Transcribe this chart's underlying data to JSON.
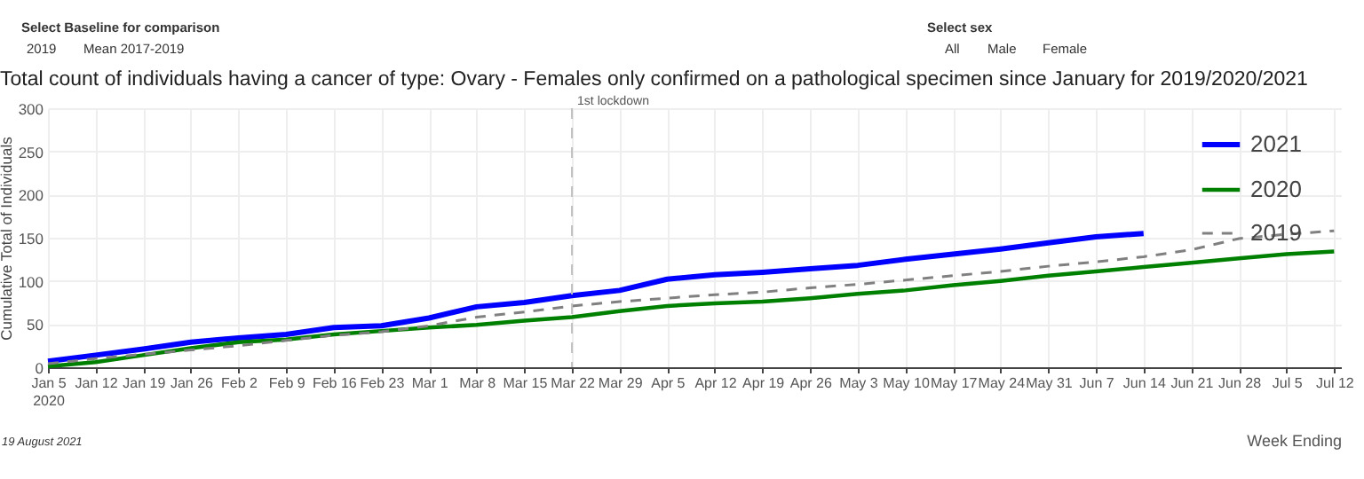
{
  "chart_data": {
    "type": "line",
    "title": "Total count of individuals having a cancer of type: Ovary - Females only confirmed on a pathological specimen since January for 2019/2020/2021",
    "xlabel": "Week Ending",
    "ylabel": "Cumulative Total of Individuals",
    "annotations": [
      "Select Baseline for comparison",
      "2019",
      "Mean 2017-2019",
      "Select sex",
      "All",
      "Male",
      "Female",
      "19 August 2021"
    ],
    "x": [
      "2020-01-05",
      "2020-01-12",
      "2020-01-19",
      "2020-01-26",
      "2020-02-02",
      "2020-02-09",
      "2020-02-16",
      "2020-02-23",
      "2020-03-01",
      "2020-03-08",
      "2020-03-15",
      "2020-03-22",
      "2020-03-29",
      "2020-04-05",
      "2020-04-12",
      "2020-04-19",
      "2020-04-26",
      "2020-05-03",
      "2020-05-10",
      "2020-05-17",
      "2020-05-24",
      "2020-05-31",
      "2020-06-07",
      "2020-06-14",
      "2020-06-21",
      "2020-06-28",
      "2020-07-05",
      "2020-07-12"
    ],
    "series": [
      {
        "name": "2021",
        "color": "#0000ff",
        "line_style": "solid",
        "values": [
          7,
          14,
          21,
          29,
          34,
          38,
          46,
          48,
          57,
          70,
          75,
          83,
          89,
          102,
          107,
          110,
          114,
          118,
          125,
          131,
          137,
          144,
          151,
          155,
          null,
          null,
          null,
          null
        ]
      },
      {
        "name": "2020",
        "color": "#008000",
        "line_style": "solid",
        "values": [
          1,
          6,
          14,
          22,
          29,
          32,
          38,
          42,
          46,
          49,
          54,
          58,
          65,
          71,
          74,
          76,
          80,
          85,
          89,
          95,
          100,
          106,
          111,
          116,
          121,
          126,
          131,
          134
        ]
      },
      {
        "name": "2019",
        "color": "#808080",
        "line_style": "dashed",
        "values": [
          4,
          10,
          15,
          20,
          25,
          31,
          37,
          41,
          48,
          58,
          64,
          71,
          76,
          80,
          84,
          87,
          92,
          96,
          101,
          106,
          111,
          117,
          122,
          128,
          136,
          149,
          154,
          158
        ]
      }
    ],
    "xlim": [
      "2020-01-05",
      "2020-07-13"
    ],
    "xticks": [
      {
        "value": "2020-01-05",
        "label": "Jan 5\n2020"
      },
      {
        "value": "2020-01-12",
        "label": "Jan 12"
      },
      {
        "value": "2020-01-19",
        "label": "Jan 19"
      },
      {
        "value": "2020-01-26",
        "label": "Jan 26"
      },
      {
        "value": "2020-02-02",
        "label": "Feb 2"
      },
      {
        "value": "2020-02-09",
        "label": "Feb 9"
      },
      {
        "value": "2020-02-16",
        "label": "Feb 16"
      },
      {
        "value": "2020-02-23",
        "label": "Feb 23"
      },
      {
        "value": "2020-03-01",
        "label": "Mar 1"
      },
      {
        "value": "2020-03-08",
        "label": "Mar 8"
      },
      {
        "value": "2020-03-15",
        "label": "Mar 15"
      },
      {
        "value": "2020-03-22",
        "label": "Mar 22"
      },
      {
        "value": "2020-03-29",
        "label": "Mar 29"
      },
      {
        "value": "2020-04-05",
        "label": "Apr 5"
      },
      {
        "value": "2020-04-12",
        "label": "Apr 12"
      },
      {
        "value": "2020-04-19",
        "label": "Apr 19"
      },
      {
        "value": "2020-04-26",
        "label": "Apr 26"
      },
      {
        "value": "2020-05-03",
        "label": "May 3"
      },
      {
        "value": "2020-05-10",
        "label": "May 10"
      },
      {
        "value": "2020-05-17",
        "label": "May 17"
      },
      {
        "value": "2020-05-24",
        "label": "May 24"
      },
      {
        "value": "2020-05-31",
        "label": "May 31"
      },
      {
        "value": "2020-06-07",
        "label": "Jun 7"
      },
      {
        "value": "2020-06-14",
        "label": "Jun 14"
      },
      {
        "value": "2020-06-21",
        "label": "Jun 21"
      },
      {
        "value": "2020-06-28",
        "label": "Jun 28"
      },
      {
        "value": "2020-07-05",
        "label": "Jul 5"
      },
      {
        "value": "2020-07-12",
        "label": "Jul 12"
      }
    ],
    "ylim": [
      0,
      300
    ],
    "yticks": [
      0,
      50,
      100,
      150,
      200,
      250,
      300
    ],
    "ref_lines": [
      {
        "axis": "x",
        "value": "2020-03-22",
        "label": "1st lockdown",
        "color": "#c0c0c0",
        "line_style": "dashed"
      }
    ],
    "grid": true,
    "legend": "top right"
  }
}
